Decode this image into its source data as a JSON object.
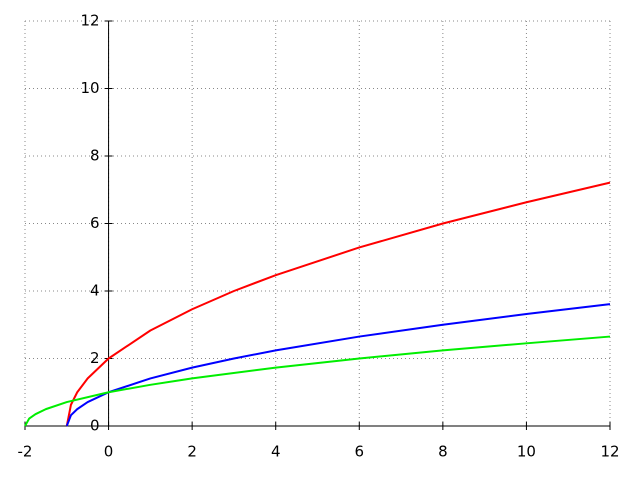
{
  "chart_data": {
    "type": "line",
    "xlim": [
      -2,
      12
    ],
    "ylim": [
      0,
      12
    ],
    "xticks": [
      -2,
      0,
      2,
      4,
      6,
      8,
      10,
      12
    ],
    "yticks": [
      0,
      2,
      4,
      6,
      8,
      10,
      12
    ],
    "grid": true,
    "series": [
      {
        "color": "#ff0000",
        "x": [
          -1,
          -0.9,
          -0.75,
          -0.5,
          0,
          1,
          2,
          3,
          4,
          6,
          8,
          10,
          12
        ],
        "values": [
          0,
          0.63,
          1,
          1.41,
          2,
          2.83,
          3.46,
          4,
          4.47,
          5.29,
          6,
          6.63,
          7.21
        ]
      },
      {
        "color": "#0000ff",
        "x": [
          -1,
          -0.9,
          -0.75,
          -0.5,
          0,
          1,
          2,
          3,
          4,
          6,
          8,
          10,
          12
        ],
        "values": [
          0,
          0.32,
          0.5,
          0.71,
          1,
          1.41,
          1.73,
          2,
          2.24,
          2.65,
          3,
          3.32,
          3.61
        ]
      },
      {
        "color": "#00ee00",
        "x": [
          -2,
          -1.9,
          -1.75,
          -1.5,
          -1,
          0,
          1,
          2,
          4,
          6,
          8,
          10,
          12
        ],
        "values": [
          0,
          0.22,
          0.35,
          0.5,
          0.71,
          1,
          1.22,
          1.41,
          1.73,
          2,
          2.24,
          2.45,
          2.65
        ]
      }
    ]
  }
}
